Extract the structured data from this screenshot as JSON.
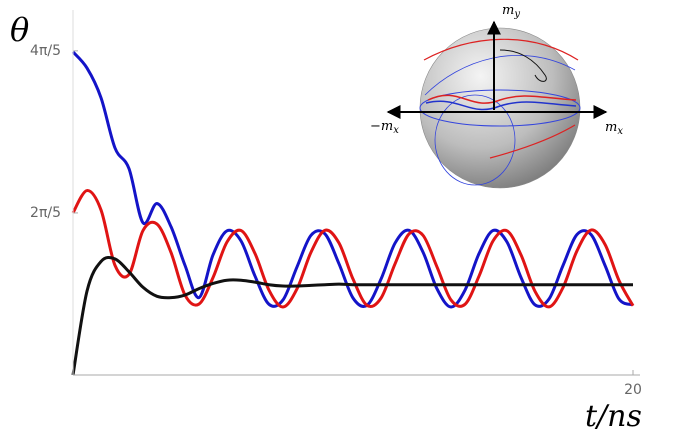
{
  "chart_data": {
    "type": "line",
    "y_label": "θ",
    "x_label": "t/ns",
    "x": [
      0,
      0.5,
      1,
      1.5,
      2,
      2.5,
      3,
      3.5,
      4,
      4.5,
      5,
      5.5,
      6,
      6.5,
      7,
      7.5,
      8,
      8.5,
      9,
      9.5,
      10,
      10.5,
      11,
      11.5,
      12,
      12.5,
      13,
      13.5,
      14,
      14.5,
      15,
      15.5,
      16,
      16.5,
      17,
      17.5,
      18,
      18.5,
      19,
      19.5,
      20
    ],
    "series": [
      {
        "color": "#1414c8",
        "values": [
          2.505,
          2.38,
          2.15,
          1.76,
          1.6,
          1.18,
          1.33,
          1.15,
          0.85,
          0.6,
          0.931,
          1.118,
          1.04,
          0.767,
          0.548,
          0.582,
          0.838,
          1.083,
          1.094,
          0.862,
          0.597,
          0.54,
          0.743,
          1.022,
          1.122,
          0.953,
          0.668,
          0.527,
          0.658,
          0.941,
          1.12,
          1.031,
          0.756,
          0.544,
          0.589,
          0.849,
          1.089,
          1.089,
          0.85,
          0.589,
          0.544
        ]
      },
      {
        "color": "#e01414",
        "values": [
          1.257,
          1.43,
          1.28,
          0.85,
          0.78,
          1.12,
          1.17,
          0.95,
          0.62,
          0.55,
          0.755,
          1.031,
          1.12,
          0.942,
          0.658,
          0.527,
          0.668,
          0.952,
          1.122,
          1.023,
          0.744,
          0.54,
          0.596,
          0.861,
          1.094,
          1.083,
          0.838,
          0.582,
          0.548,
          0.766,
          1.039,
          1.118,
          0.931,
          0.649,
          0.528,
          0.678,
          0.963,
          1.124,
          1.013,
          0.733,
          0.537
        ]
      },
      {
        "color": "#111111",
        "values": [
          0,
          0.65,
          0.88,
          0.9,
          0.8,
          0.68,
          0.61,
          0.6,
          0.62,
          0.67,
          0.71,
          0.735,
          0.735,
          0.72,
          0.7,
          0.69,
          0.69,
          0.695,
          0.7,
          0.705,
          0.7,
          0.7,
          0.7,
          0.7,
          0.7,
          0.7,
          0.7,
          0.7,
          0.7,
          0.7,
          0.7,
          0.7,
          0.7,
          0.7,
          0.7,
          0.7,
          0.7,
          0.7,
          0.7,
          0.7,
          0.7
        ]
      }
    ],
    "xlim": [
      0,
      20.25
    ],
    "ylim": [
      0,
      2.83
    ],
    "xticks": [
      20
    ],
    "yticks": [
      {
        "value": 1.2566,
        "label": "2π/5"
      },
      {
        "value": 2.5133,
        "label": "4π/5"
      }
    ],
    "annotations": [
      "my",
      "−mx",
      "mx"
    ]
  }
}
